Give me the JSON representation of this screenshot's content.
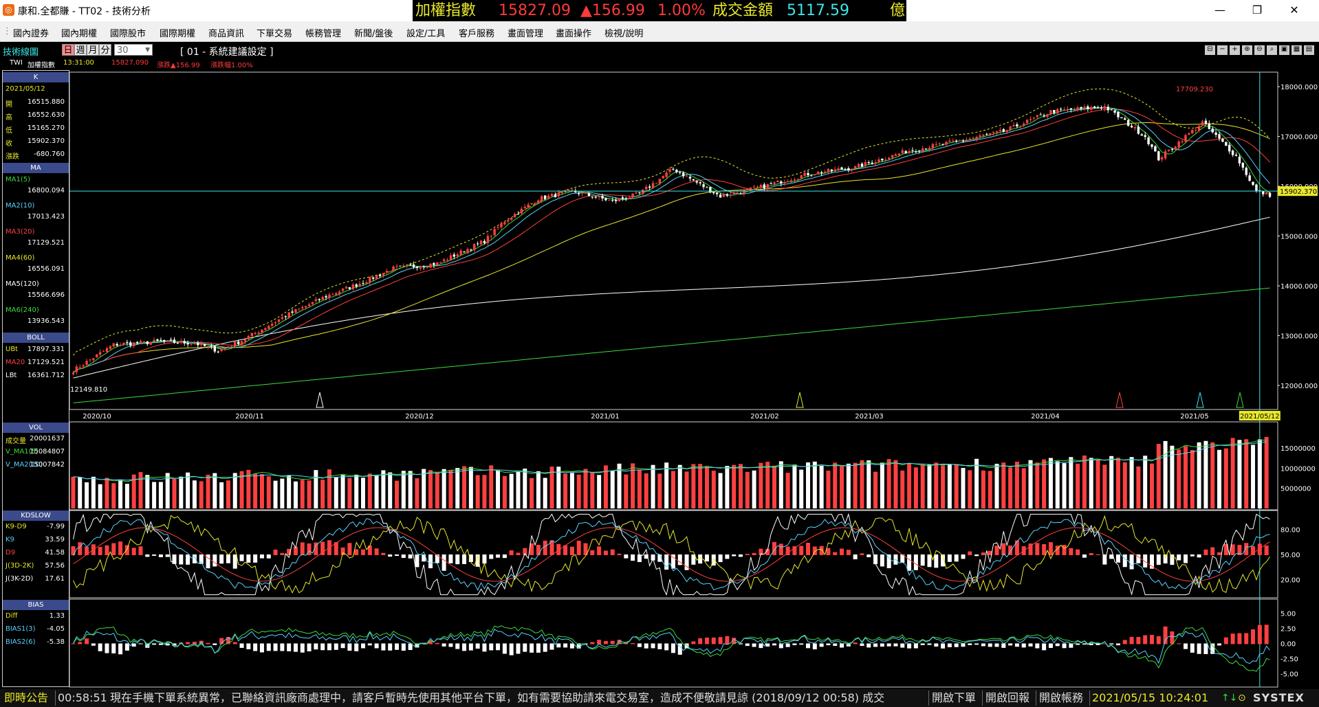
{
  "window": {
    "icon": "systex-app-icon",
    "title": "康和.全都賺 - TT02 - 技術分析",
    "controls": [
      "minimize",
      "restore",
      "close"
    ]
  },
  "ticker": {
    "name": "加權指數",
    "price": "15827.09",
    "change": "▲156.99",
    "pct": "1.00%",
    "turnover_label": "成交金額",
    "turnover": "5117.59",
    "unit": "億"
  },
  "menu": {
    "items": [
      "國內證券",
      "國內期權",
      "國際股市",
      "國際期權",
      "商品資訊",
      "下單交易",
      "帳務管理",
      "新聞/盤後",
      "設定/工具",
      "客戶服務",
      "畫面管理",
      "畫面操作",
      "檢視/說明"
    ]
  },
  "toolbar": {
    "title": "技術線圖",
    "periods": [
      "日",
      "週",
      "月",
      "分"
    ],
    "minute_value": "30",
    "setting_name": "[ 01 - 系統建議設定 ]",
    "symbol": "TWI",
    "symbol_name": "加權指數",
    "time": "13:31:00",
    "last": "15827.090",
    "change": "漲跌▲156.99",
    "change_pct": "漲跌幅1.00%"
  },
  "left": {
    "k_header": "K",
    "date": "2021/05/12",
    "ohlc": [
      {
        "label": "開",
        "value": "16515.880"
      },
      {
        "label": "高",
        "value": "16552.630"
      },
      {
        "label": "低",
        "value": "15165.270"
      },
      {
        "label": "收",
        "value": "15902.370"
      },
      {
        "label": "漲跌",
        "value": "-680.760"
      }
    ],
    "ma_header": "MA",
    "ma": [
      {
        "label": "MA1(5)",
        "value": "16800.094",
        "color": "#3cdc3c"
      },
      {
        "label": "MA2(10)",
        "value": "17013.423",
        "color": "#5ad2ff"
      },
      {
        "label": "MA3(20)",
        "value": "17129.521",
        "color": "#ff4040"
      },
      {
        "label": "MA4(60)",
        "value": "16556.091",
        "color": "#e8e82a"
      },
      {
        "label": "MA5(120)",
        "value": "15566.696",
        "color": "#ffffff"
      },
      {
        "label": "MA6(240)",
        "value": "13936.543",
        "color": "#3cdc3c"
      }
    ],
    "boll_header": "BOLL",
    "boll": [
      {
        "label": "UBt",
        "value": "17897.331",
        "color": "#e8e82a"
      },
      {
        "label": "MA20",
        "value": "17129.521",
        "color": "#ff4040"
      },
      {
        "label": "LBt",
        "value": "16361.712",
        "color": "#ffffff"
      }
    ],
    "vol_header": "VOL",
    "vol": [
      {
        "label": "成交量",
        "value": "20001637",
        "color": "#e8e82a"
      },
      {
        "label": "V_MA1(5)",
        "value": "15084807",
        "color": "#3cdc3c"
      },
      {
        "label": "V_MA2(10)",
        "value": "15007842",
        "color": "#5ad2ff"
      }
    ],
    "kd_header": "KDSLOW",
    "kd": [
      {
        "label": "K9-D9",
        "value": "-7.99",
        "color": "#e8e82a"
      },
      {
        "label": "K9",
        "value": "33.59",
        "color": "#5ad2ff"
      },
      {
        "label": "D9",
        "value": "41.58",
        "color": "#ff4040"
      },
      {
        "label": "J(3D-2K)",
        "value": "57.56",
        "color": "#e8e82a"
      },
      {
        "label": "J(3K-2D)",
        "value": "17.61",
        "color": "#ffffff"
      }
    ],
    "bias_header": "BIAS",
    "bias": [
      {
        "label": "Diff",
        "value": "1.33",
        "color": "#e8e82a"
      },
      {
        "label": "BIAS1(3)",
        "value": "-4.05",
        "color": "#5ad2ff"
      },
      {
        "label": "BIAS2(6)",
        "value": "-5.38",
        "color": "#5ad2ff"
      }
    ]
  },
  "chart_data": [
    {
      "type": "candlestick",
      "title": "加權指數",
      "x_ticks": [
        "2020/10",
        "2020/11",
        "2020/12",
        "2021/01",
        "2021/02",
        "2021/03",
        "2021/04",
        "2021/05"
      ],
      "y_ticks": [
        "18000.000",
        "17000.000",
        "16000.000",
        "15000.000",
        "14000.000",
        "13000.000",
        "12000.000"
      ],
      "ylim": [
        11600,
        18250
      ],
      "annotations": {
        "high": "17709.230",
        "low": "12149.810",
        "last": "15902.370",
        "cursor_date": "2021/05/12"
      },
      "close_anchors": [
        [
          0,
          12300
        ],
        [
          12,
          12820
        ],
        [
          25,
          12880
        ],
        [
          36,
          12850
        ],
        [
          43,
          12700
        ],
        [
          50,
          12900
        ],
        [
          63,
          13400
        ],
        [
          75,
          13790
        ],
        [
          85,
          14050
        ],
        [
          95,
          14350
        ],
        [
          108,
          14450
        ],
        [
          122,
          14900
        ],
        [
          128,
          15300
        ],
        [
          138,
          15750
        ],
        [
          148,
          15900
        ],
        [
          160,
          15700
        ],
        [
          168,
          15850
        ],
        [
          178,
          16350
        ],
        [
          192,
          15800
        ],
        [
          205,
          16000
        ],
        [
          218,
          16250
        ],
        [
          232,
          16380
        ],
        [
          247,
          16700
        ],
        [
          262,
          16900
        ],
        [
          276,
          17100
        ],
        [
          290,
          17500
        ],
        [
          306,
          17600
        ],
        [
          318,
          17000
        ],
        [
          322,
          16550
        ],
        [
          335,
          17280
        ],
        [
          345,
          16600
        ],
        [
          351,
          15900
        ],
        [
          355,
          15827
        ]
      ],
      "series_colors": {
        "up": "#ff4040",
        "down": "#ffffff",
        "ma5": "#3cdc3c",
        "ma10": "#5ad2ff",
        "ma20": "#ff4040",
        "ma60": "#e8e82a",
        "ma120": "#ffffff",
        "ma240": "#3cdc3c",
        "ub": "#e8e82a"
      }
    },
    {
      "type": "bar",
      "title": "VOL",
      "y_ticks": [
        "15000000",
        "10000000",
        "5000000"
      ],
      "ylim": [
        0,
        21000000
      ]
    },
    {
      "type": "line",
      "title": "KDSLOW",
      "y_ticks": [
        "80.00",
        "50.00",
        "20.00"
      ],
      "ylim": [
        0,
        100
      ]
    },
    {
      "type": "line",
      "title": "BIAS",
      "y_ticks": [
        "5.00",
        "2.50",
        "0.00",
        "-2.50",
        "-5.00"
      ],
      "ylim": [
        -7,
        7
      ]
    }
  ],
  "status": {
    "label": "即時公告",
    "time": "00:58:51",
    "message": "現在手機下單系統異常，已聯絡資訊廠商處理中，請客戶暫時先使用其他平台下單，如有需要協助請來電交易室，造成不便敬請見諒 (2018/09/12 00:58) 成交",
    "buttons": [
      "開啟下單",
      "開啟回報",
      "開啟帳務"
    ],
    "datetime": "2021/05/15 10:24:01",
    "brand": "SYSTEX"
  }
}
